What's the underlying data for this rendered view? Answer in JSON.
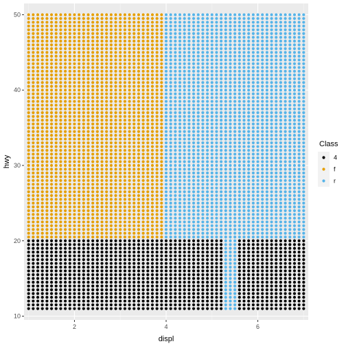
{
  "chart_data": {
    "type": "scatter",
    "xlabel": "displ",
    "ylabel": "hwy",
    "xlim": [
      0.9,
      7.1
    ],
    "ylim": [
      9.5,
      51.5
    ],
    "xticks": [
      2,
      4,
      6
    ],
    "yticks": [
      10,
      20,
      30,
      40,
      50
    ],
    "grid": true,
    "background": "#ebebeb",
    "legend": {
      "title": "Class",
      "placement": "right",
      "entries": [
        {
          "label": "4",
          "color": "#000000"
        },
        {
          "label": "f",
          "color": "#e69f00"
        },
        {
          "label": "r",
          "color": "#56b4e9"
        }
      ]
    },
    "grid_spec": {
      "x_min": 1.0,
      "x_max": 7.0,
      "x_step": 0.1,
      "y_min": 11.0,
      "y_max": 50.0,
      "y_step": 0.5
    },
    "series": [
      {
        "name": "4",
        "color": "#000000",
        "regions": [
          {
            "x": [
              1.0,
              7.0
            ],
            "y": [
              11.0,
              20.0
            ]
          },
          {
            "x": [
              2.4,
              2.6
            ],
            "y": [
              20.0,
              27.0
            ]
          },
          {
            "x": [
              2.6,
              3.9
            ],
            "y": [
              24.5,
              25.0
            ]
          }
        ]
      },
      {
        "name": "f",
        "color": "#e69f00",
        "regions": [
          {
            "x": [
              1.0,
              3.9
            ],
            "y": [
              20.5,
              50.0
            ]
          }
        ]
      },
      {
        "name": "r",
        "color": "#56b4e9",
        "regions": [
          {
            "x": [
              4.0,
              7.0
            ],
            "y": [
              20.5,
              50.0
            ]
          },
          {
            "x": [
              5.3,
              5.5
            ],
            "y": [
              11.0,
              20.0
            ]
          }
        ]
      }
    ]
  }
}
